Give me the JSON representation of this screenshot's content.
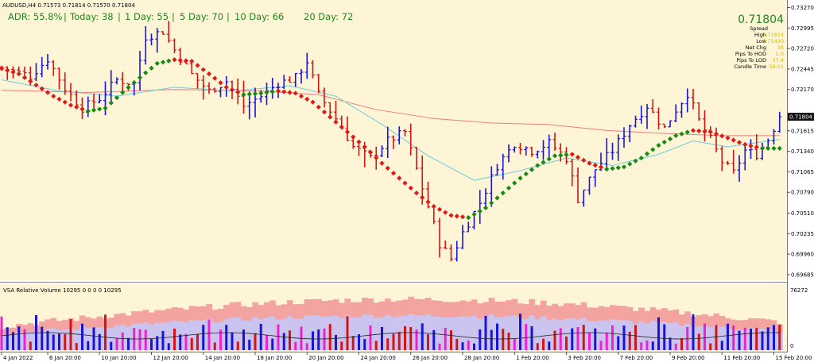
{
  "window": {
    "symbol_title": "AUDUSD,H4  0.71573 0.71814 0.71570 0.71804"
  },
  "stats_bar": {
    "adr": "ADR: 55.8%",
    "today": "Today: 38",
    "day1": "1 Day: 55",
    "day5": "5 Day: 70",
    "day10": "10 Day: 66",
    "day20": "20 Day: 72",
    "separator": "|"
  },
  "info_panel": {
    "price": "0.71804",
    "spread_label": "Spread",
    "high_label": "High",
    "high_value": "0.71814",
    "low_label": "Low",
    "low_value": "0.71430",
    "netchg_label": "Net Chg",
    "netchg_value": "38",
    "hod_label": "Pips To HOD",
    "hod_value": "1.0",
    "lod_label": "Pips To LOD",
    "lod_value": "37.4",
    "candle_label": "Candle Time",
    "candle_value": "59:21"
  },
  "volume_panel": {
    "title": "VSA Relative Volume 10295 0 0 0 0 10295",
    "max_label": "76272",
    "min_label": "0"
  },
  "colors": {
    "background": "#fdf5d6",
    "bull_bar": "#1a14d6",
    "bear_bar": "#d61414",
    "ma_up": "#158a15",
    "ma_down": "#e01818",
    "ma_slow": "#ec7e7a",
    "ma_mid": "#6ccbd8",
    "price_text": "#1a8a1a",
    "info_value": "#d8b800"
  },
  "chart_data": {
    "type": "ohlc",
    "symbol": "AUDUSD",
    "timeframe": "H4",
    "last_price": 0.71804,
    "y_ticks": [
      0.7327,
      0.72995,
      0.7272,
      0.72445,
      0.7217,
      0.71615,
      0.7134,
      0.71065,
      0.7079,
      0.7051,
      0.70235,
      0.6996,
      0.69685
    ],
    "y_tick_labels": [
      "0.73270",
      "0.72995",
      "0.72720",
      "0.72445",
      "0.72170",
      "0.71615",
      "0.71340",
      "0.71065",
      "0.70790",
      "0.70510",
      "0.70235",
      "0.69960",
      "0.69685"
    ],
    "ylim": [
      0.6962,
      0.7335
    ],
    "x_labels": [
      "4 Jan 2022",
      "6 Jan 20:00",
      "10 Jan 20:00",
      "12 Jan 20:00",
      "14 Jan 20:00",
      "18 Jan 20:00",
      "20 Jan 20:00",
      "24 Jan 20:00",
      "26 Jan 20:00",
      "28 Jan 20:00",
      "1 Feb 20:00",
      "3 Feb 20:00",
      "7 Feb 20:00",
      "9 Feb 20:00",
      "11 Feb 20:00",
      "15 Feb 20:00"
    ],
    "x_label_positions": [
      0,
      8,
      17,
      26,
      35,
      44,
      53,
      62,
      71,
      80,
      89,
      98,
      107,
      116,
      125,
      134
    ],
    "price_path": [
      [
        0,
        0.7247
      ],
      [
        5,
        0.7235
      ],
      [
        8,
        0.7258
      ],
      [
        11,
        0.7218
      ],
      [
        14,
        0.7192
      ],
      [
        17,
        0.7205
      ],
      [
        20,
        0.723
      ],
      [
        23,
        0.7225
      ],
      [
        25,
        0.7288
      ],
      [
        28,
        0.7295
      ],
      [
        30,
        0.727
      ],
      [
        33,
        0.7237
      ],
      [
        36,
        0.7215
      ],
      [
        39,
        0.7228
      ],
      [
        42,
        0.7195
      ],
      [
        45,
        0.7208
      ],
      [
        48,
        0.7225
      ],
      [
        51,
        0.7233
      ],
      [
        53,
        0.7255
      ],
      [
        55,
        0.721
      ],
      [
        58,
        0.7178
      ],
      [
        61,
        0.714
      ],
      [
        64,
        0.7125
      ],
      [
        67,
        0.7148
      ],
      [
        70,
        0.716
      ],
      [
        72,
        0.711
      ],
      [
        74,
        0.706
      ],
      [
        76,
        0.701
      ],
      [
        78,
        0.699
      ],
      [
        80,
        0.7025
      ],
      [
        83,
        0.7065
      ],
      [
        86,
        0.7115
      ],
      [
        89,
        0.7145
      ],
      [
        92,
        0.7135
      ],
      [
        95,
        0.7145
      ],
      [
        98,
        0.7125
      ],
      [
        100,
        0.707
      ],
      [
        103,
        0.711
      ],
      [
        106,
        0.7135
      ],
      [
        109,
        0.717
      ],
      [
        112,
        0.7195
      ],
      [
        115,
        0.7165
      ],
      [
        117,
        0.719
      ],
      [
        119,
        0.7212
      ],
      [
        121,
        0.7175
      ],
      [
        123,
        0.715
      ],
      [
        125,
        0.712
      ],
      [
        127,
        0.7105
      ],
      [
        129,
        0.7135
      ],
      [
        131,
        0.713
      ],
      [
        133,
        0.715
      ],
      [
        135,
        0.718
      ]
    ],
    "trend_ma": [
      [
        0,
        0.7245
      ],
      [
        3,
        0.7238
      ],
      [
        6,
        0.7223
      ],
      [
        9,
        0.7208
      ],
      [
        12,
        0.7196
      ],
      [
        15,
        0.7188
      ],
      [
        18,
        0.7192
      ],
      [
        21,
        0.7213
      ],
      [
        24,
        0.7233
      ],
      [
        27,
        0.7252
      ],
      [
        30,
        0.7257
      ],
      [
        33,
        0.7255
      ],
      [
        36,
        0.7238
      ],
      [
        39,
        0.722
      ],
      [
        42,
        0.721
      ],
      [
        45,
        0.7212
      ],
      [
        48,
        0.7215
      ],
      [
        51,
        0.7212
      ],
      [
        54,
        0.72
      ],
      [
        57,
        0.718
      ],
      [
        60,
        0.716
      ],
      [
        63,
        0.714
      ],
      [
        66,
        0.7118
      ],
      [
        69,
        0.7098
      ],
      [
        72,
        0.7078
      ],
      [
        75,
        0.706
      ],
      [
        78,
        0.7048
      ],
      [
        81,
        0.7045
      ],
      [
        84,
        0.7058
      ],
      [
        87,
        0.7078
      ],
      [
        90,
        0.7098
      ],
      [
        93,
        0.7115
      ],
      [
        96,
        0.7128
      ],
      [
        99,
        0.713
      ],
      [
        102,
        0.7118
      ],
      [
        105,
        0.711
      ],
      [
        108,
        0.7113
      ],
      [
        111,
        0.7125
      ],
      [
        114,
        0.7142
      ],
      [
        117,
        0.7155
      ],
      [
        120,
        0.7162
      ],
      [
        123,
        0.716
      ],
      [
        126,
        0.7152
      ],
      [
        129,
        0.7143
      ],
      [
        132,
        0.7138
      ],
      [
        135,
        0.7138
      ]
    ],
    "slow_ma": [
      [
        0,
        0.7216
      ],
      [
        15,
        0.7213
      ],
      [
        30,
        0.7217
      ],
      [
        45,
        0.7215
      ],
      [
        55,
        0.721
      ],
      [
        65,
        0.719
      ],
      [
        75,
        0.7178
      ],
      [
        85,
        0.7172
      ],
      [
        95,
        0.717
      ],
      [
        105,
        0.7162
      ],
      [
        115,
        0.7158
      ],
      [
        125,
        0.7155
      ],
      [
        135,
        0.7155
      ]
    ],
    "mid_ma": [
      [
        0,
        0.723
      ],
      [
        10,
        0.7215
      ],
      [
        20,
        0.7208
      ],
      [
        30,
        0.722
      ],
      [
        40,
        0.7215
      ],
      [
        50,
        0.7222
      ],
      [
        58,
        0.7208
      ],
      [
        66,
        0.717
      ],
      [
        74,
        0.7128
      ],
      [
        82,
        0.7095
      ],
      [
        90,
        0.7108
      ],
      [
        98,
        0.7125
      ],
      [
        106,
        0.7115
      ],
      [
        114,
        0.713
      ],
      [
        120,
        0.7148
      ],
      [
        126,
        0.714
      ],
      [
        135,
        0.715
      ]
    ]
  }
}
